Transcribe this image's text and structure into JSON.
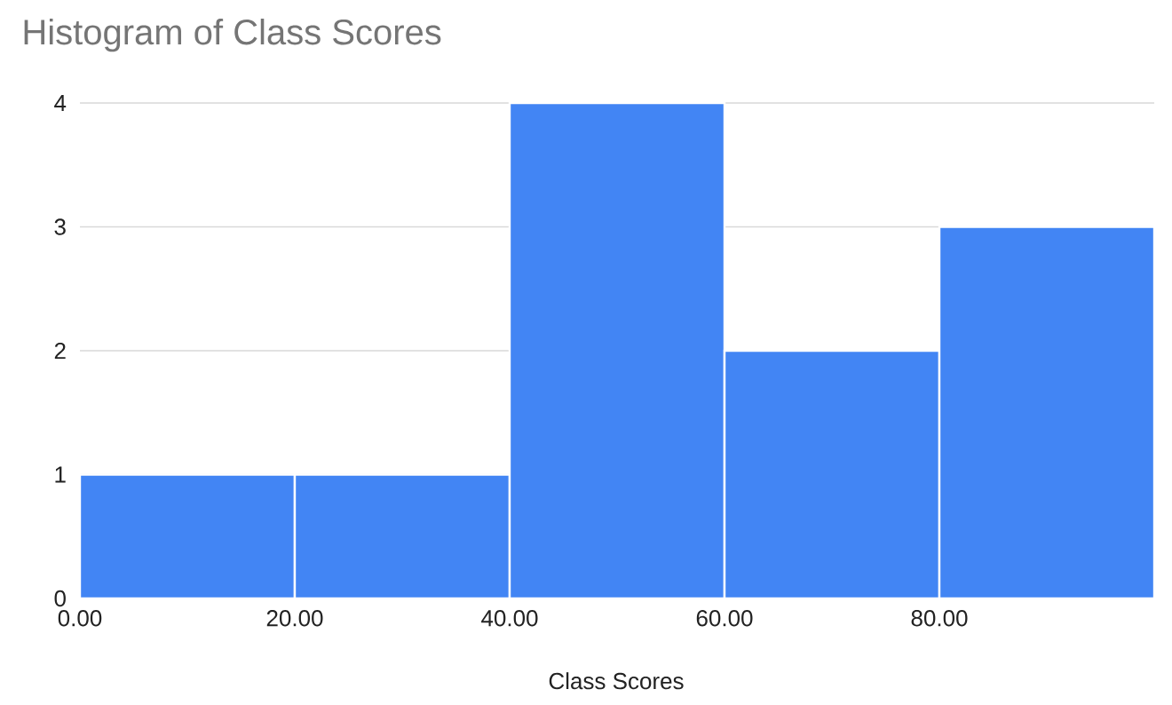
{
  "chart_data": {
    "type": "histogram",
    "title": "Histogram of Class Scores",
    "xlabel": "Class Scores",
    "bins": [
      0,
      20,
      40,
      60,
      80,
      100
    ],
    "values": [
      1,
      1,
      4,
      2,
      3
    ],
    "color": "#4285f4",
    "xlim": [
      0,
      100
    ],
    "xticks": [
      {
        "value": 0,
        "label": "0.00"
      },
      {
        "value": 20,
        "label": "20.00"
      },
      {
        "value": 40,
        "label": "40.00"
      },
      {
        "value": 60,
        "label": "60.00"
      },
      {
        "value": 80,
        "label": "80.00"
      }
    ],
    "ylim": [
      0,
      4
    ],
    "yticks": [
      0,
      1,
      2,
      3,
      4
    ],
    "grid": "y"
  }
}
